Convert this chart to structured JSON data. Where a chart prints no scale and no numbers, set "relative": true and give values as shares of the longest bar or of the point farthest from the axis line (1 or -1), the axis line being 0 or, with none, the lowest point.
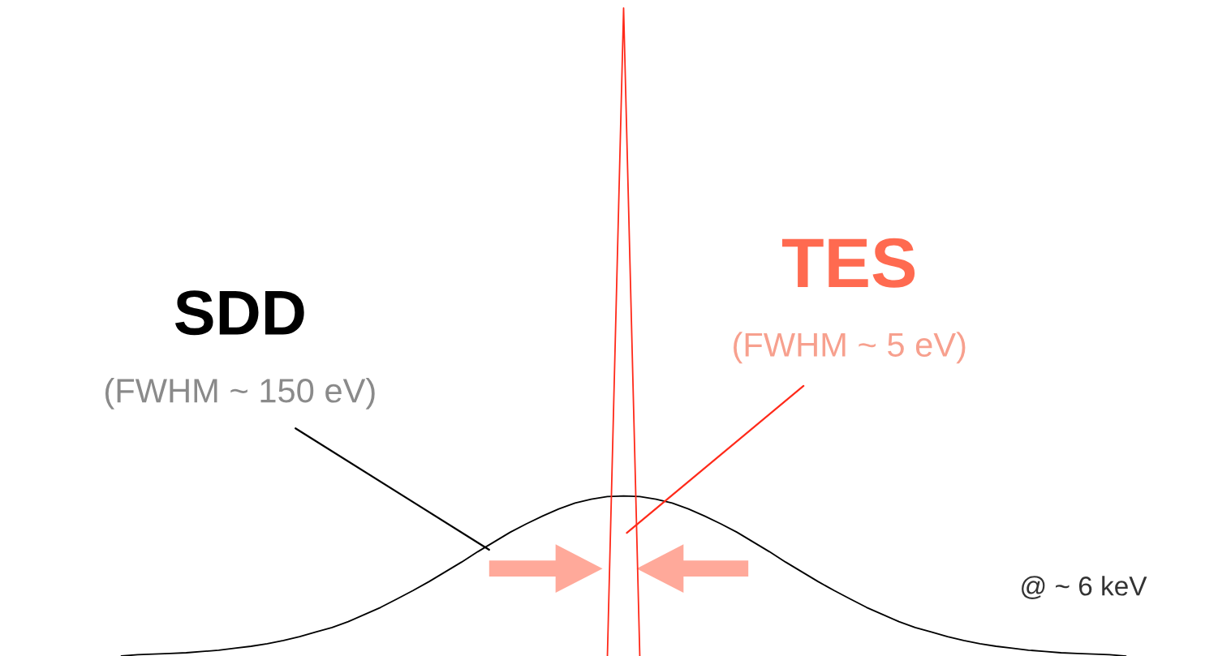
{
  "chart_data": {
    "type": "line",
    "relative": true,
    "categories": [
      null,
      null,
      null,
      null,
      null,
      null,
      null,
      null,
      null,
      null,
      null,
      null,
      null,
      null,
      null,
      null,
      null,
      null,
      null,
      null,
      null,
      null,
      null,
      null,
      null,
      null,
      null,
      null,
      null,
      null,
      null,
      null,
      null,
      null,
      null,
      null,
      null,
      null,
      null,
      null,
      null,
      null,
      null,
      null,
      null,
      null,
      null,
      null,
      null,
      null,
      null,
      null,
      null,
      null,
      null,
      null,
      null,
      null,
      null,
      null,
      null,
      null,
      null,
      null,
      null,
      null,
      null,
      null,
      null,
      null,
      null,
      null,
      null,
      null,
      null,
      null
    ],
    "series": [
      {
        "name": "SDD",
        "color": "#000000",
        "values": [
          null,
          null,
          null,
          null,
          null,
          null,
          null,
          0,
          0.002,
          0.003,
          0.004,
          0.005,
          0.007,
          0.009,
          0.012,
          0.015,
          0.019,
          0.024,
          0.03,
          0.037,
          0.044,
          0.053,
          0.064,
          0.075,
          0.088,
          0.101,
          0.115,
          0.13,
          0.145,
          0.161,
          0.176,
          0.191,
          0.204,
          0.216,
          0.227,
          0.236,
          0.242,
          0.246,
          0.247,
          0.246,
          0.242,
          0.236,
          0.227,
          0.216,
          0.204,
          0.191,
          0.176,
          0.161,
          0.145,
          0.13,
          0.115,
          0.101,
          0.088,
          0.075,
          0.064,
          0.053,
          0.044,
          0.037,
          0.03,
          0.024,
          0.019,
          0.015,
          0.012,
          0.009,
          0.007,
          0.005,
          0.004,
          0.003,
          0.002,
          0,
          null,
          null,
          null,
          null,
          null,
          null
        ]
      },
      {
        "name": "TES",
        "color": "#ff2a1a",
        "values": [
          null,
          null,
          null,
          null,
          null,
          null,
          null,
          null,
          null,
          null,
          null,
          null,
          null,
          null,
          null,
          null,
          null,
          null,
          null,
          null,
          null,
          null,
          null,
          null,
          null,
          null,
          null,
          null,
          null,
          null,
          null,
          null,
          null,
          null,
          null,
          null,
          null,
          0,
          1,
          0,
          null,
          null,
          null,
          null,
          null,
          null,
          null,
          null,
          null,
          null,
          null,
          null,
          null,
          null,
          null,
          null,
          null,
          null,
          null,
          null,
          null,
          null,
          null,
          null,
          null,
          null,
          null,
          null,
          null,
          null,
          null,
          null,
          null,
          null,
          null,
          null
        ]
      }
    ],
    "annotations": [
      "(FWHM ~ 150 eV)",
      "(FWHM ~ 5 eV)",
      "@ ~ 6 keV"
    ],
    "legend": false,
    "marker": "none",
    "line_style": "solid"
  }
}
